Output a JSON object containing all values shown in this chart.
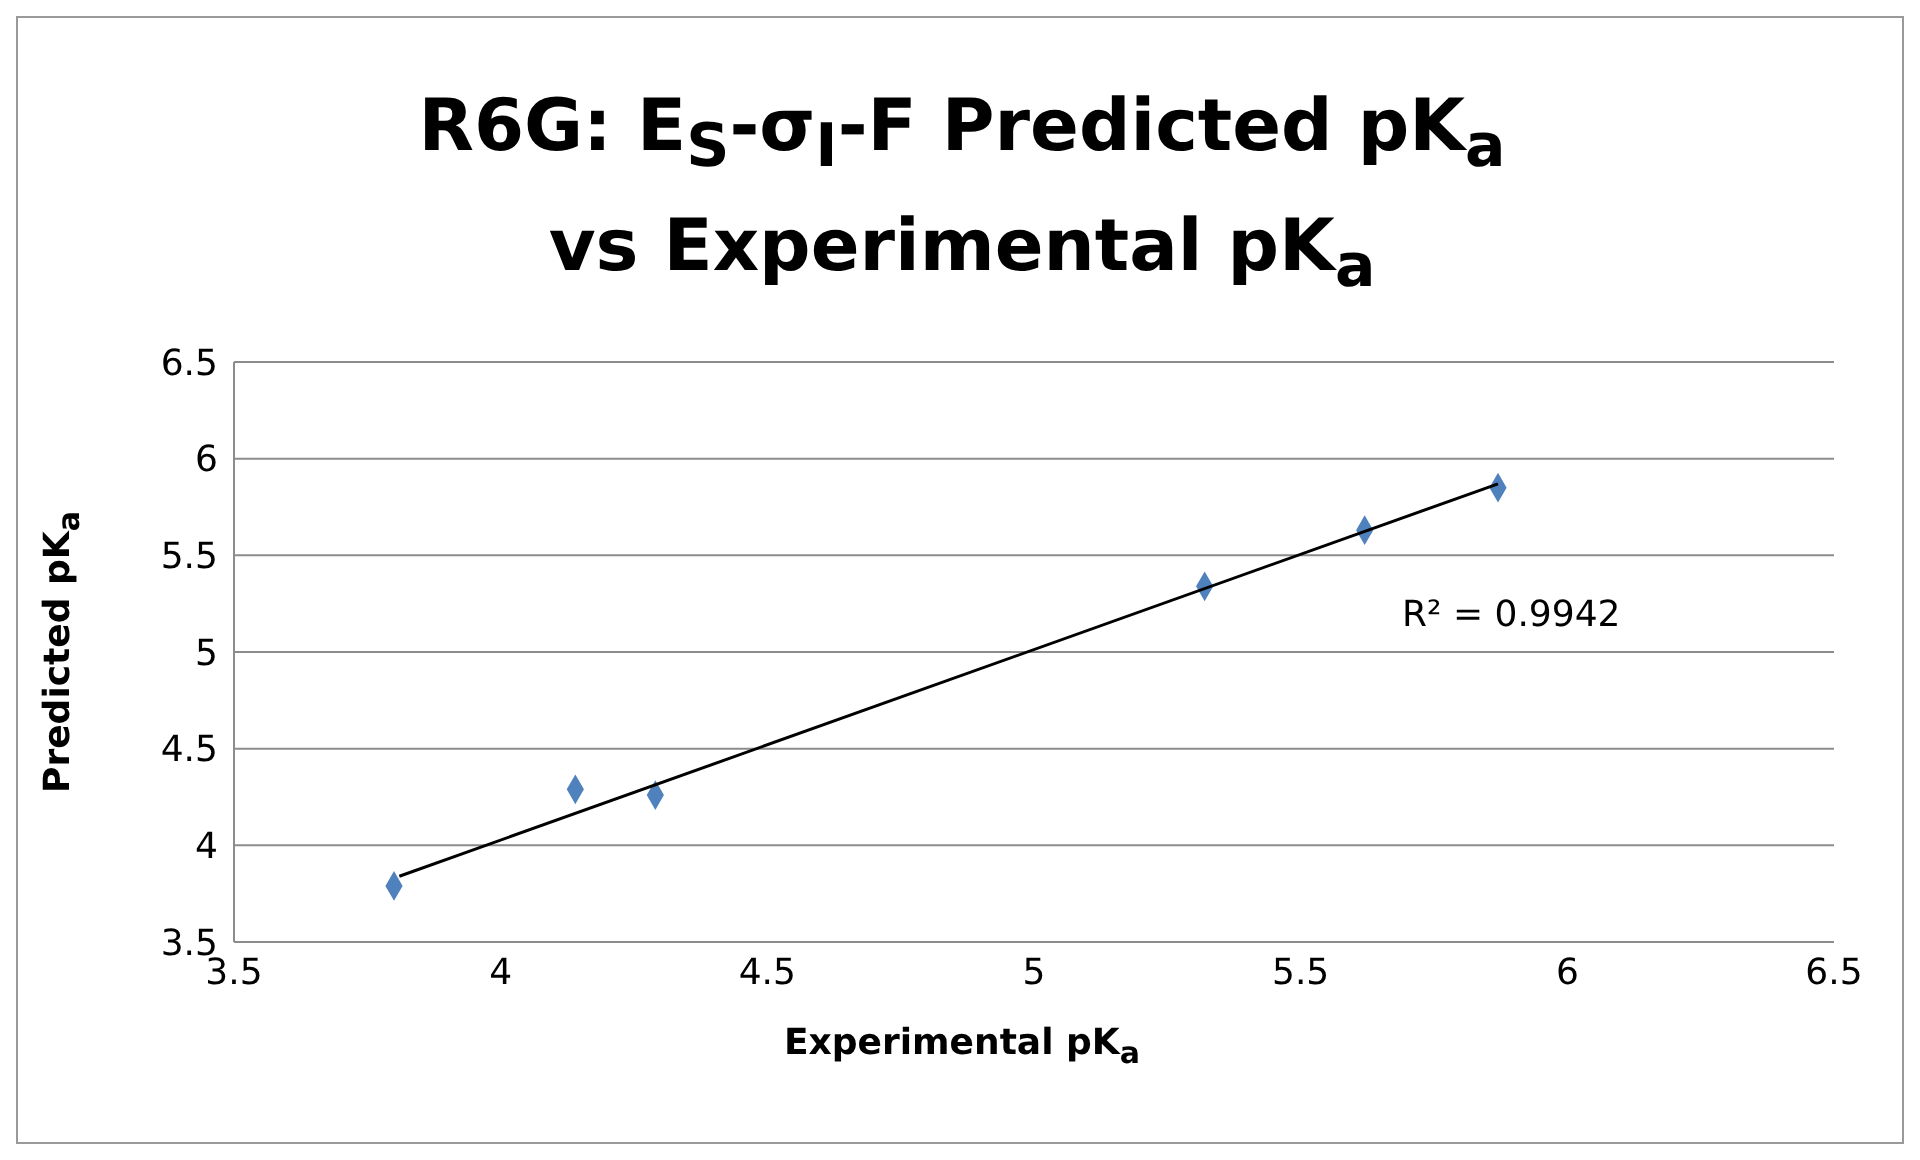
{
  "chart_data": {
    "type": "scatter",
    "title": "R6G: E$_{S}$-σ$_{I}$-F Predicted pK$_{a}$ vs Experimental pK$_{a}$",
    "xlabel": "Experimental pK$_{a}$",
    "ylabel": "Predicted pK$_{a}$",
    "annotations": [
      "R² = 0.9942"
    ],
    "series": [
      {
        "color": "#4f81bd",
        "x": [
          3.8,
          4.14,
          4.29,
          5.32,
          5.62,
          5.87
        ],
        "values": [
          3.79,
          4.29,
          4.26,
          5.34,
          5.63,
          5.85
        ]
      },
      {
        "type": "line",
        "color": "#000000",
        "marker": "none",
        "x": [
          3.81,
          5.87
        ],
        "values": [
          3.84,
          5.87
        ]
      }
    ],
    "xlim": [
      3.5,
      6.5
    ],
    "xticks": [
      3.5,
      4,
      4.5,
      5,
      5.5,
      6,
      6.5
    ],
    "ylim": [
      3.5,
      6.5
    ],
    "yticks": [
      3.5,
      4,
      4.5,
      5,
      5.5,
      6,
      6.5
    ],
    "grid": "y",
    "marker": "diamond"
  }
}
